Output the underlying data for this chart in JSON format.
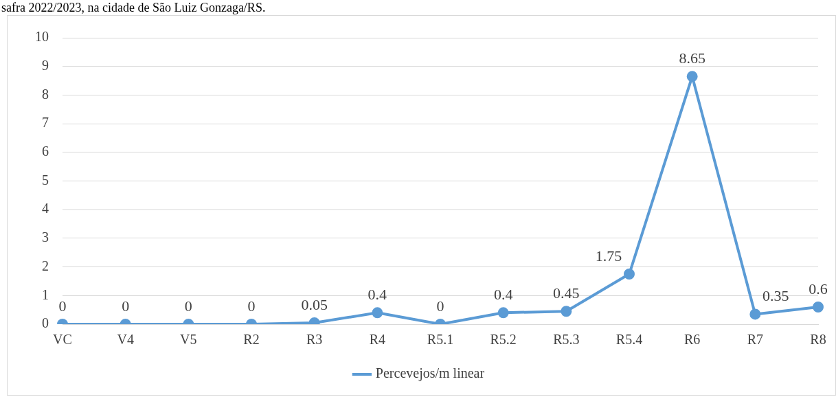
{
  "chart_data": {
    "type": "line",
    "annotations": [
      "safra 2022/2023, na cidade de São Luiz Gonzaga/RS."
    ],
    "categories": [
      "VC",
      "V4",
      "V5",
      "R2",
      "R3",
      "R4",
      "R5.1",
      "R5.2",
      "R5.3",
      "R5.4",
      "R6",
      "R7",
      "R8"
    ],
    "series": [
      {
        "name": "Percevejos/m linear",
        "color": "#5b9bd5",
        "values": [
          0,
          0,
          0,
          0,
          0.05,
          0.4,
          0,
          0.4,
          0.45,
          1.75,
          8.65,
          0.35,
          0.6
        ]
      }
    ],
    "ylim": [
      0,
      10
    ],
    "yticks": [
      0,
      1,
      2,
      3,
      4,
      5,
      6,
      7,
      8,
      9,
      10
    ],
    "grid": "y",
    "legend": "bottom",
    "marker": "circle",
    "line_style": "solid",
    "data_labels": true
  }
}
